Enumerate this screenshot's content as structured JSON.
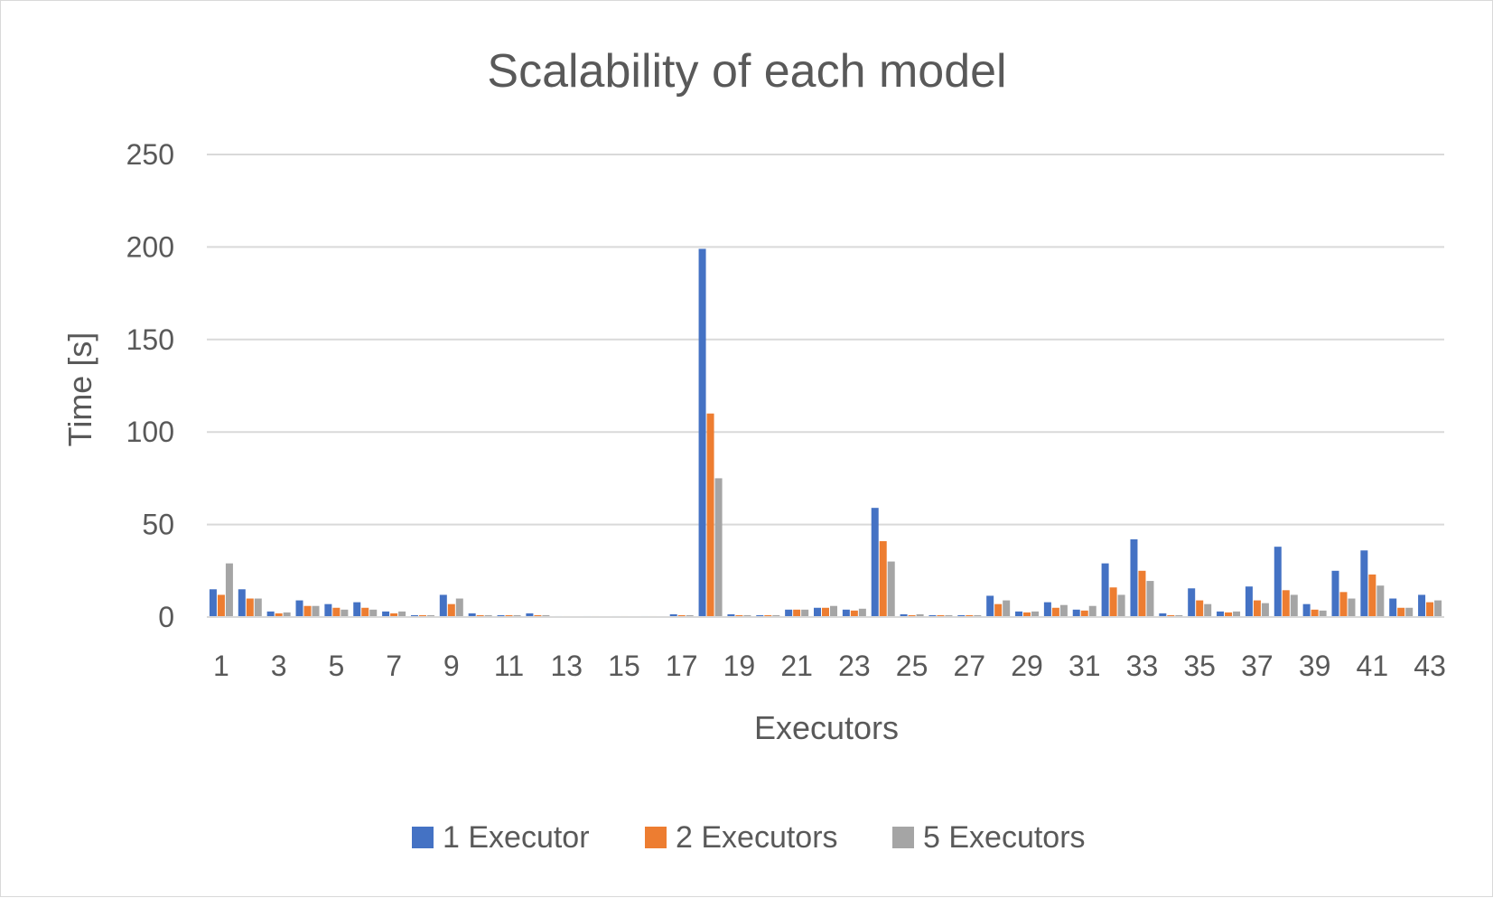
{
  "chart_data": {
    "type": "bar",
    "title": "Scalability of each model",
    "xlabel": "Executors",
    "ylabel": "Time [s]",
    "ylim": [
      0,
      250
    ],
    "yticks": [
      0,
      50,
      100,
      150,
      200,
      250
    ],
    "grid": true,
    "legend_position": "bottom",
    "categories": [
      "1",
      "2",
      "3",
      "4",
      "5",
      "6",
      "7",
      "8",
      "9",
      "10",
      "11",
      "12",
      "13",
      "14",
      "15",
      "16",
      "17",
      "18",
      "19",
      "20",
      "21",
      "22",
      "23",
      "24",
      "25",
      "26",
      "27",
      "28",
      "29",
      "30",
      "31",
      "32",
      "33",
      "34",
      "35",
      "36",
      "37",
      "38",
      "39",
      "40",
      "41",
      "42",
      "43"
    ],
    "shown_tick_labels": [
      "1",
      "3",
      "5",
      "7",
      "9",
      "11",
      "13",
      "15",
      "17",
      "19",
      "21",
      "23",
      "25",
      "27",
      "29",
      "31",
      "33",
      "35",
      "37",
      "39",
      "41",
      "43"
    ],
    "series": [
      {
        "name": "1 Executor",
        "color": "#4472C4",
        "values": [
          15,
          15,
          3,
          9,
          7,
          8,
          3,
          1,
          12,
          2,
          1,
          2,
          0.5,
          0.5,
          0.5,
          0.5,
          1.5,
          199,
          1.5,
          1,
          4,
          5,
          4,
          59,
          1.5,
          1,
          1,
          11.5,
          3,
          8,
          4,
          29,
          42,
          2,
          15.5,
          3,
          16.5,
          38,
          7,
          25,
          36,
          10,
          12
        ]
      },
      {
        "name": "2 Executors",
        "color": "#ED7D31",
        "values": [
          12,
          10,
          2,
          6,
          5,
          5,
          2,
          1,
          7,
          1,
          1,
          1,
          0.5,
          0.5,
          0.5,
          0.5,
          1,
          110,
          1,
          1,
          4,
          5,
          3.5,
          41,
          1,
          1,
          1,
          7,
          2.5,
          5,
          3.5,
          16,
          25,
          1,
          9,
          2.5,
          9,
          14.5,
          4,
          13.5,
          23,
          5,
          8
        ]
      },
      {
        "name": "5 Executors",
        "color": "#A5A5A5",
        "values": [
          29,
          10,
          2.5,
          6,
          4,
          4,
          3,
          1,
          10,
          1,
          1,
          1,
          0.5,
          0.5,
          0.5,
          0.5,
          1,
          75,
          1,
          1,
          4,
          6,
          4.5,
          30,
          1.5,
          1,
          1,
          9,
          3,
          6.5,
          6,
          12,
          19.5,
          1,
          7,
          3,
          7.5,
          12,
          3.5,
          10,
          17,
          5,
          9
        ]
      }
    ]
  }
}
